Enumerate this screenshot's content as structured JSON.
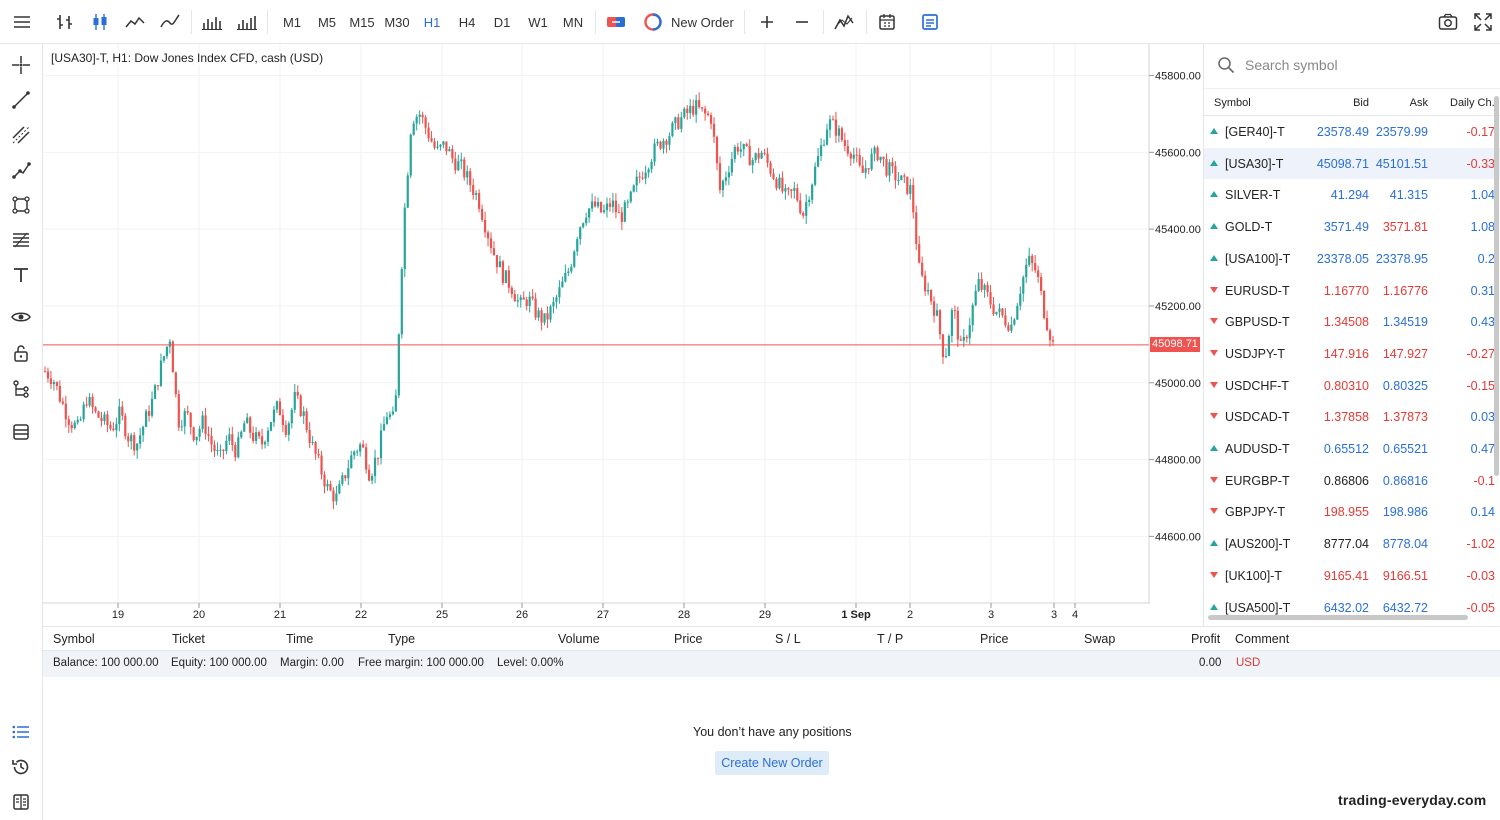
{
  "toolbar": {
    "timeframes": [
      "M1",
      "M5",
      "M15",
      "M30",
      "H1",
      "H4",
      "D1",
      "W1",
      "MN"
    ],
    "active_timeframe": "H1",
    "new_order_label": "New Order"
  },
  "chart": {
    "title": "[USA30]-T, H1: Dow Jones Index CFD, cash (USD)",
    "current_price": "45098.71"
  },
  "chart_data": {
    "type": "candlestick",
    "title": "[USA30]-T, H1: Dow Jones Index CFD, cash (USD)",
    "ylim": [
      44450,
      45830
    ],
    "y_ticks": [
      "45800.00",
      "45600.00",
      "45400.00",
      "45200.00",
      "45000.00",
      "44800.00",
      "44600.00"
    ],
    "x_ticks": [
      "19",
      "20",
      "21",
      "22",
      "25",
      "26",
      "27",
      "28",
      "29",
      "1 Sep",
      "2",
      "3",
      "3",
      "4"
    ],
    "current_price": 45098.71,
    "close_path": [
      45030,
      45010,
      44950,
      44900,
      44880,
      44960,
      44920,
      44900,
      44880,
      44920,
      44860,
      44840,
      44900,
      44960,
      45050,
      45120,
      44900,
      44920,
      44860,
      44900,
      44840,
      44800,
      44860,
      44820,
      44900,
      44860,
      44840,
      44900,
      44940,
      44880,
      44960,
      44920,
      44840,
      44780,
      44720,
      44700,
      44760,
      44820,
      44840,
      44760,
      44820,
      44920,
      44900,
      45400,
      45690,
      45700,
      45650,
      45600,
      45620,
      45580,
      45560,
      45520,
      45480,
      45400,
      45330,
      45280,
      45250,
      45200,
      45220,
      45180,
      45160,
      45200,
      45250,
      45300,
      45400,
      45450,
      45460,
      45440,
      45470,
      45430,
      45460,
      45520,
      45560,
      45600,
      45630,
      45650,
      45680,
      45700,
      45720,
      45700,
      45690,
      45500,
      45560,
      45620,
      45600,
      45580,
      45600,
      45560,
      45520,
      45480,
      45500,
      45440,
      45520,
      45600,
      45680,
      45660,
      45620,
      45600,
      45540,
      45580,
      45600,
      45560,
      45540,
      45520,
      45500,
      45280,
      45240,
      45180,
      45060,
      45200,
      45080,
      45160,
      45260,
      45230,
      45190,
      45170,
      45150,
      45240,
      45320,
      45290,
      45180,
      45100
    ]
  },
  "watchlist": {
    "search_placeholder": "Search symbol",
    "columns": [
      "Symbol",
      "Bid",
      "Ask",
      "Daily Ch."
    ],
    "rows": [
      {
        "dir": "up",
        "symbol": "[GER40]-T",
        "bid": "23578.49",
        "ask": "23579.99",
        "change": "-0.17",
        "bid_color": "blue",
        "ask_color": "blue"
      },
      {
        "dir": "up",
        "symbol": "[USA30]-T",
        "bid": "45098.71",
        "ask": "45101.51",
        "change": "-0.33",
        "bid_color": "blue",
        "ask_color": "blue"
      },
      {
        "dir": "up",
        "symbol": "SILVER-T",
        "bid": "41.294",
        "ask": "41.315",
        "change": "1.04",
        "bid_color": "blue",
        "ask_color": "blue"
      },
      {
        "dir": "up",
        "symbol": "GOLD-T",
        "bid": "3571.49",
        "ask": "3571.81",
        "change": "1.08",
        "bid_color": "blue",
        "ask_color": "red"
      },
      {
        "dir": "up",
        "symbol": "[USA100]-T",
        "bid": "23378.05",
        "ask": "23378.95",
        "change": "0.2",
        "bid_color": "blue",
        "ask_color": "blue"
      },
      {
        "dir": "down",
        "symbol": "EURUSD-T",
        "bid": "1.16770",
        "ask": "1.16776",
        "change": "0.31",
        "bid_color": "red",
        "ask_color": "red"
      },
      {
        "dir": "down",
        "symbol": "GBPUSD-T",
        "bid": "1.34508",
        "ask": "1.34519",
        "change": "0.43",
        "bid_color": "red",
        "ask_color": "blue"
      },
      {
        "dir": "down",
        "symbol": "USDJPY-T",
        "bid": "147.916",
        "ask": "147.927",
        "change": "-0.27",
        "bid_color": "red",
        "ask_color": "red"
      },
      {
        "dir": "down",
        "symbol": "USDCHF-T",
        "bid": "0.80310",
        "ask": "0.80325",
        "change": "-0.15",
        "bid_color": "red",
        "ask_color": "blue"
      },
      {
        "dir": "down",
        "symbol": "USDCAD-T",
        "bid": "1.37858",
        "ask": "1.37873",
        "change": "0.03",
        "bid_color": "red",
        "ask_color": "red"
      },
      {
        "dir": "up",
        "symbol": "AUDUSD-T",
        "bid": "0.65512",
        "ask": "0.65521",
        "change": "0.47",
        "bid_color": "blue",
        "ask_color": "blue"
      },
      {
        "dir": "down",
        "symbol": "EURGBP-T",
        "bid": "0.86806",
        "ask": "0.86816",
        "change": "-0.1",
        "bid_color": "black",
        "ask_color": "blue"
      },
      {
        "dir": "down",
        "symbol": "GBPJPY-T",
        "bid": "198.955",
        "ask": "198.986",
        "change": "0.14",
        "bid_color": "red",
        "ask_color": "blue"
      },
      {
        "dir": "up",
        "symbol": "[AUS200]-T",
        "bid": "8777.04",
        "ask": "8778.04",
        "change": "-1.02",
        "bid_color": "black",
        "ask_color": "blue"
      },
      {
        "dir": "down",
        "symbol": "[UK100]-T",
        "bid": "9165.41",
        "ask": "9166.51",
        "change": "-0.03",
        "bid_color": "red",
        "ask_color": "red"
      },
      {
        "dir": "up",
        "symbol": "[USA500]-T",
        "bid": "6432.02",
        "ask": "6432.72",
        "change": "-0.05",
        "bid_color": "blue",
        "ask_color": "blue"
      }
    ]
  },
  "positions": {
    "columns": [
      "Symbol",
      "Ticket",
      "Time",
      "Type",
      "Volume",
      "Price",
      "S / L",
      "T / P",
      "Price",
      "Swap",
      "Profit",
      "Comment"
    ],
    "balance": "Balance: 100 000.00",
    "equity": "Equity: 100 000.00",
    "margin": "Margin: 0.00",
    "free_margin": "Free margin: 100 000.00",
    "level": "Level: 0.00%",
    "profit": "0.00",
    "currency": "USD",
    "empty_message": "You don’t have any positions",
    "create_button": "Create New Order"
  },
  "watermark": "trading-everyday.com",
  "colors": {
    "bull": "#26a69a",
    "bear": "#ef5350",
    "accent": "#2a6fd8",
    "price_line": "#ef5350"
  }
}
